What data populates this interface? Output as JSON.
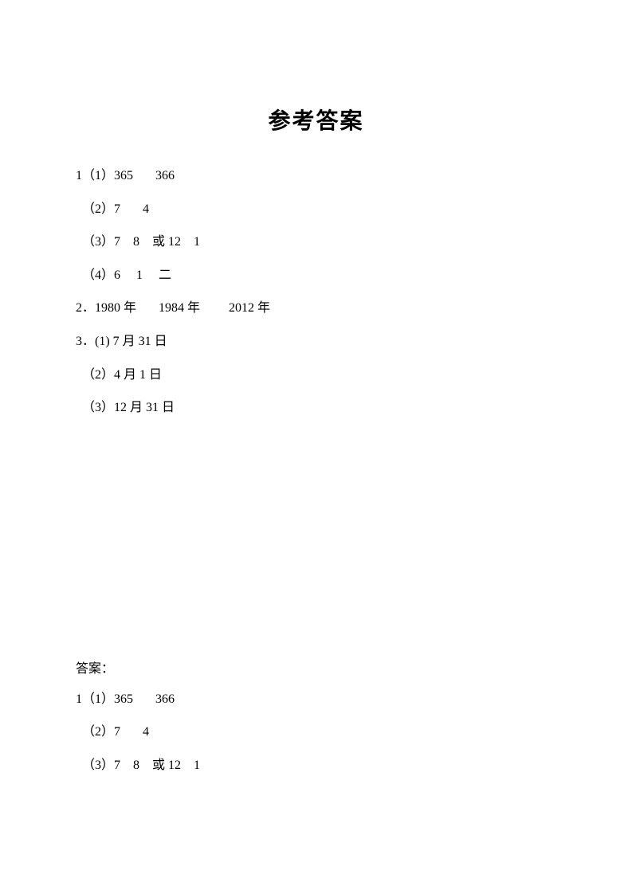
{
  "title": "参考答案",
  "section1": {
    "lines": [
      "1（1）365       366",
      "（2）7       4",
      "（3）7    8    或 12    1",
      "（4）6     1     二",
      "2．1980 年       1984 年         2012 年",
      "3．(1) 7 月 31 日",
      "（2）4 月 1 日",
      "（3）12 月 31 日"
    ]
  },
  "section2": {
    "label": "答案：",
    "lines": [
      "1（1）365       366",
      "（2）7       4",
      "（3）7    8    或 12    1"
    ]
  },
  "styles": {
    "background_color": "#ffffff",
    "text_color": "#000000",
    "title_fontsize": 28,
    "body_fontsize": 16,
    "title_font": "KaiTi",
    "body_font": "SimSun"
  }
}
